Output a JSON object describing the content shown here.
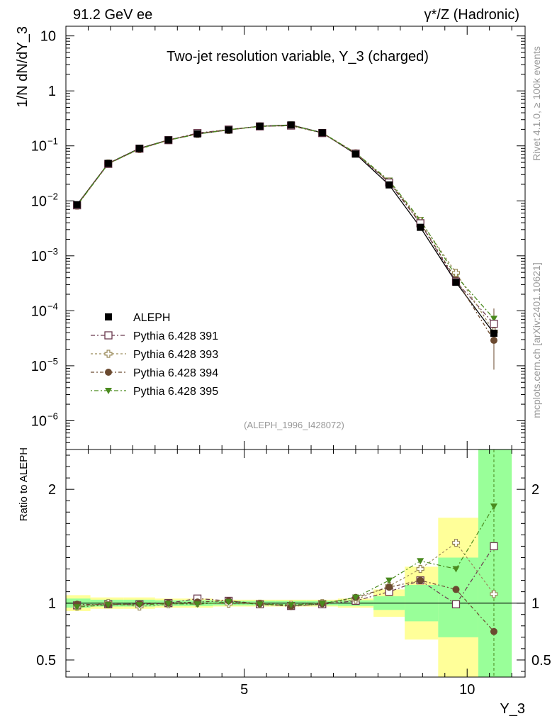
{
  "header": {
    "left": "91.2 GeV ee",
    "right": "γ*/Z (Hadronic)"
  },
  "side_labels": {
    "top": "Rivet 4.1.0, ≥ 100k events",
    "bottom": "mcplots.cern.ch [arXiv:2401.10621]"
  },
  "chart_data": [
    {
      "type": "line",
      "title": "Two-jet resolution variable, Y_3 (charged)",
      "ylabel": "1/N  dN/dY_3",
      "yscale": "log",
      "ylim": [
        3e-07,
        15
      ],
      "xlim": [
        1.0,
        11.3
      ],
      "watermark": "(ALEPH_1996_I428072)",
      "y_ticks": [
        {
          "value": 10,
          "label": "10"
        },
        {
          "value": 1,
          "label": "1"
        },
        {
          "value": 0.1,
          "label": "10",
          "exp": "−1"
        },
        {
          "value": 0.01,
          "label": "10",
          "exp": "−2"
        },
        {
          "value": 0.001,
          "label": "10",
          "exp": "−3"
        },
        {
          "value": 0.0001,
          "label": "10",
          "exp": "−4"
        },
        {
          "value": 1e-05,
          "label": "10",
          "exp": "−5"
        },
        {
          "value": 1e-06,
          "label": "10",
          "exp": "−6"
        }
      ],
      "x": [
        1.25,
        1.95,
        2.65,
        3.3,
        3.95,
        4.65,
        5.35,
        6.05,
        6.75,
        7.5,
        8.25,
        8.95,
        9.75,
        10.6
      ],
      "series": [
        {
          "name": "ALEPH",
          "marker": "square-filled",
          "color": "#000000",
          "values": [
            0.0085,
            0.048,
            0.09,
            0.128,
            0.165,
            0.195,
            0.228,
            0.24,
            0.173,
            0.071,
            0.0195,
            0.0033,
            0.00033,
            3.9e-05
          ]
        },
        {
          "name": "Pythia 6.428 391",
          "marker": "square-open",
          "color": "#6b3a4f",
          "values": [
            0.0083,
            0.047,
            0.089,
            0.127,
            0.171,
            0.198,
            0.226,
            0.234,
            0.171,
            0.0725,
            0.0215,
            0.0039,
            0.00034,
            5.8e-05
          ]
        },
        {
          "name": "Pythia 6.428 393",
          "marker": "cross-open",
          "color": "#9a8a5a",
          "values": [
            0.0082,
            0.0478,
            0.087,
            0.127,
            0.165,
            0.194,
            0.227,
            0.236,
            0.172,
            0.073,
            0.0225,
            0.0043,
            0.00049,
            4.2e-05
          ]
        },
        {
          "name": "Pythia 6.428 394",
          "marker": "circle-filled",
          "color": "#6b4a30",
          "values": [
            0.0084,
            0.0475,
            0.0895,
            0.128,
            0.167,
            0.198,
            0.227,
            0.233,
            0.172,
            0.0745,
            0.0223,
            0.004,
            0.00037,
            2.9e-05
          ]
        },
        {
          "name": "Pythia 6.428 395",
          "marker": "triangle-down-filled",
          "color": "#4a8a1e",
          "values": [
            0.0082,
            0.0472,
            0.0885,
            0.127,
            0.163,
            0.197,
            0.226,
            0.237,
            0.173,
            0.0745,
            0.0235,
            0.0045,
            0.00043,
            7.2e-05
          ]
        }
      ]
    },
    {
      "type": "line",
      "ylabel": "Ratio to ALEPH",
      "xlabel": "Y_3",
      "ylim": [
        0.35,
        2.35
      ],
      "xlim": [
        1.0,
        11.3
      ],
      "y_ticks": [
        0.5,
        1,
        2
      ],
      "x_ticks": [
        5,
        10
      ],
      "x": [
        1.25,
        1.95,
        2.65,
        3.3,
        3.95,
        4.65,
        5.35,
        6.05,
        6.75,
        7.5,
        8.25,
        8.95,
        9.75,
        10.6
      ],
      "bin_edges": [
        1.0,
        1.55,
        2.3,
        3.0,
        3.65,
        4.3,
        5.0,
        5.7,
        6.4,
        7.1,
        7.9,
        8.6,
        9.35,
        10.25,
        11.0
      ],
      "band_yellow": [
        [
          0.93,
          1.07
        ],
        [
          0.95,
          1.05
        ],
        [
          0.95,
          1.05
        ],
        [
          0.96,
          1.04
        ],
        [
          0.96,
          1.04
        ],
        [
          0.97,
          1.03
        ],
        [
          0.97,
          1.03
        ],
        [
          0.97,
          1.03
        ],
        [
          0.97,
          1.03
        ],
        [
          0.96,
          1.04
        ],
        [
          0.88,
          1.12
        ],
        [
          0.68,
          1.32
        ],
        [
          0.35,
          1.75
        ],
        [
          0.35,
          2.35
        ]
      ],
      "band_green": [
        [
          0.96,
          1.04
        ],
        [
          0.97,
          1.03
        ],
        [
          0.97,
          1.03
        ],
        [
          0.975,
          1.025
        ],
        [
          0.975,
          1.025
        ],
        [
          0.98,
          1.02
        ],
        [
          0.98,
          1.02
        ],
        [
          0.98,
          1.02
        ],
        [
          0.98,
          1.02
        ],
        [
          0.975,
          1.025
        ],
        [
          0.94,
          1.06
        ],
        [
          0.84,
          1.16
        ],
        [
          0.7,
          1.4
        ],
        [
          0.35,
          2.35
        ]
      ],
      "series": [
        {
          "name": "Pythia 6.428 391",
          "marker": "square-open",
          "color": "#6b3a4f",
          "values": [
            0.98,
            0.99,
            0.99,
            1.0,
            1.04,
            1.02,
            0.99,
            0.975,
            0.99,
            1.02,
            1.1,
            1.2,
            0.99,
            1.5
          ]
        },
        {
          "name": "Pythia 6.428 393",
          "marker": "cross-open",
          "color": "#9a8a5a",
          "values": [
            0.97,
            1.0,
            0.97,
            0.99,
            1.0,
            0.995,
            0.995,
            0.985,
            1.0,
            1.03,
            1.15,
            1.3,
            1.53,
            1.08
          ]
        },
        {
          "name": "Pythia 6.428 394",
          "marker": "circle-filled",
          "color": "#6b4a30",
          "values": [
            0.99,
            0.985,
            0.995,
            1.0,
            1.01,
            1.02,
            0.995,
            0.97,
            0.995,
            1.05,
            1.14,
            1.2,
            1.12,
            0.75
          ]
        },
        {
          "name": "Pythia 6.428 395",
          "marker": "triangle-down-filled",
          "color": "#4a8a1e",
          "values": [
            0.965,
            0.985,
            0.985,
            0.995,
            0.99,
            1.01,
            0.99,
            0.985,
            0.995,
            1.05,
            1.2,
            1.37,
            1.3,
            1.85
          ]
        }
      ]
    }
  ]
}
